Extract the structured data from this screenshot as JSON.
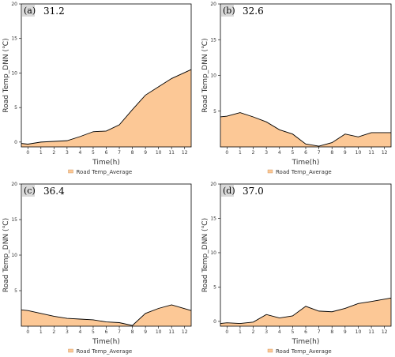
{
  "chart_data": [
    {
      "type": "area",
      "panel_label": "(a)",
      "annotation": "31.2",
      "x": [
        0,
        1,
        2,
        3,
        4,
        5,
        6,
        7,
        8,
        9,
        10,
        11,
        12
      ],
      "x_tick_labels": [
        "0",
        "1",
        "2",
        "3",
        "4",
        "5",
        "6",
        "7",
        "8",
        "9",
        "10",
        "11",
        "12"
      ],
      "series": [
        {
          "name": "Road Temp_Average",
          "x": [
            -0.5,
            0,
            1,
            2,
            3,
            4,
            5,
            6,
            7,
            8,
            9,
            10,
            11,
            12.5
          ],
          "values": [
            -0.2,
            -0.3,
            0.0,
            0.1,
            0.2,
            0.8,
            1.5,
            1.6,
            2.5,
            4.7,
            6.8,
            8.0,
            9.2,
            10.5
          ]
        }
      ],
      "xlabel": "Time(h)",
      "ylabel": "Road Temp_DNN (℃)",
      "ylim": [
        -0.7,
        20
      ],
      "y_ticks": [
        0,
        5,
        10,
        15,
        20
      ],
      "legend": {
        "label": "Road Temp_Average",
        "placement": "bottom-center"
      },
      "fill_color": "#fcc896",
      "line_color": "#000000"
    },
    {
      "type": "area",
      "panel_label": "(b)",
      "annotation": "32.6",
      "x": [
        0,
        1,
        2,
        3,
        4,
        5,
        6,
        7,
        8,
        9,
        10,
        11,
        12
      ],
      "x_tick_labels": [
        "0",
        "1",
        "2",
        "3",
        "4",
        "5",
        "6",
        "7",
        "8",
        "9",
        "10",
        "11",
        "12"
      ],
      "series": [
        {
          "name": "Road Temp_Average",
          "x": [
            -0.5,
            0,
            1,
            2,
            3,
            4,
            5,
            6,
            7,
            8,
            9,
            10,
            11,
            12.5
          ],
          "values": [
            4.2,
            4.3,
            4.8,
            4.2,
            3.5,
            2.4,
            1.8,
            0.4,
            0.1,
            0.6,
            1.8,
            1.4,
            2.0,
            2.0
          ]
        }
      ],
      "xlabel": "Time(h)",
      "ylabel": "Road Temp_DNN (℃)",
      "ylim": [
        0,
        20
      ],
      "y_ticks": [
        5,
        10,
        15,
        20
      ],
      "legend": {
        "label": "Road Temp_Average",
        "placement": "bottom-center"
      },
      "fill_color": "#fcc896",
      "line_color": "#000000"
    },
    {
      "type": "area",
      "panel_label": "(c)",
      "annotation": "36.4",
      "x": [
        0,
        1,
        2,
        3,
        4,
        5,
        6,
        7,
        8,
        9,
        10,
        11,
        12
      ],
      "x_tick_labels": [
        "0",
        "1",
        "2",
        "3",
        "4",
        "5",
        "6",
        "7",
        "8",
        "9",
        "10",
        "11",
        "12"
      ],
      "series": [
        {
          "name": "Road Temp_Average",
          "x": [
            -0.5,
            0,
            1,
            2,
            3,
            4,
            5,
            6,
            7,
            8,
            9,
            10,
            11,
            12.5
          ],
          "values": [
            2.3,
            2.2,
            1.8,
            1.4,
            1.1,
            1.0,
            0.9,
            0.6,
            0.5,
            0.1,
            1.8,
            2.5,
            3.0,
            2.2
          ]
        }
      ],
      "xlabel": "Time(h)",
      "ylabel": "Road Temp_DNN (℃)",
      "ylim": [
        0,
        20
      ],
      "y_ticks": [
        5,
        10,
        15,
        20
      ],
      "legend": {
        "label": "Road Temp_Average",
        "placement": "bottom-center"
      },
      "fill_color": "#fcc896",
      "line_color": "#000000"
    },
    {
      "type": "area",
      "panel_label": "(d)",
      "annotation": "37.0",
      "x": [
        0,
        1,
        2,
        3,
        4,
        5,
        6,
        7,
        8,
        9,
        10,
        11,
        12
      ],
      "x_tick_labels": [
        "0",
        "1",
        "2",
        "3",
        "4",
        "5",
        "6",
        "7",
        "8",
        "9",
        "10",
        "11",
        "12"
      ],
      "series": [
        {
          "name": "Road Temp_Average",
          "x": [
            -0.5,
            0,
            1,
            2,
            3,
            4,
            5,
            6,
            7,
            8,
            9,
            10,
            11,
            12.5
          ],
          "values": [
            -0.3,
            -0.2,
            -0.3,
            -0.1,
            1.0,
            0.5,
            0.8,
            2.2,
            1.5,
            1.4,
            1.9,
            2.6,
            2.9,
            3.4
          ]
        }
      ],
      "xlabel": "Time(h)",
      "ylabel": "Road Temp_DNN (℃)",
      "ylim": [
        -0.7,
        20
      ],
      "y_ticks": [
        0,
        5,
        10,
        15,
        20
      ],
      "legend": {
        "label": "Road Temp_Average",
        "placement": "bottom-center"
      },
      "fill_color": "#fcc896",
      "line_color": "#000000"
    }
  ]
}
